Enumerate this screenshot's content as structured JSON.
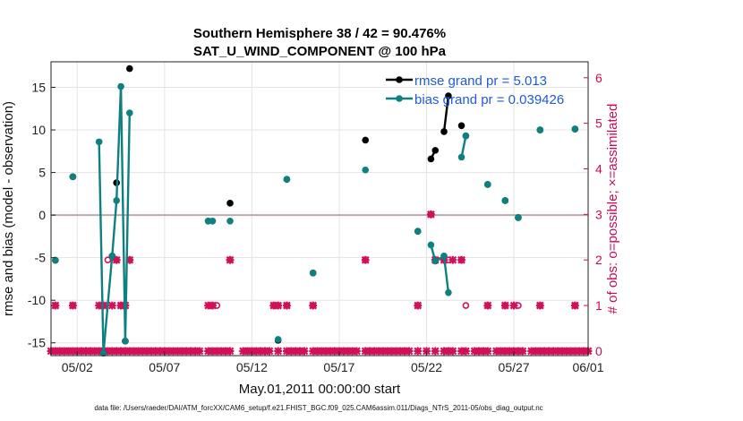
{
  "chart_data": {
    "type": "line",
    "title_line1": "Southern Hemisphere 38 / 42 = 90.476%",
    "title_line2": "SAT_U_WIND_COMPONENT @ 100 hPa",
    "xlabel": "May.01,2011 00:00:00 start",
    "ylabel_left": "rmse and bias (model - observation)",
    "ylabel_right": "# of obs: o=possible; ×=assimilated",
    "xlim": [
      0.5,
      31.25
    ],
    "ylim_left": [
      -16.5,
      18
    ],
    "ylim_right": [
      -0.1,
      6.35
    ],
    "x_ticks": [
      {
        "v": 2,
        "label": "05/02"
      },
      {
        "v": 7,
        "label": "05/07"
      },
      {
        "v": 12,
        "label": "05/12"
      },
      {
        "v": 17,
        "label": "05/17"
      },
      {
        "v": 22,
        "label": "05/22"
      },
      {
        "v": 27,
        "label": "05/27"
      },
      {
        "v": 32,
        "label": "06/01"
      }
    ],
    "y_ticks_left": [
      {
        "v": 15,
        "label": "15"
      },
      {
        "v": 10,
        "label": "10"
      },
      {
        "v": 5,
        "label": "5"
      },
      {
        "v": 0,
        "label": "0"
      },
      {
        "v": -5,
        "label": "-5"
      },
      {
        "v": -10,
        "label": "-10"
      },
      {
        "v": -15,
        "label": "-15"
      }
    ],
    "y_ticks_right": [
      {
        "v": 0,
        "label": "0"
      },
      {
        "v": 1,
        "label": "1"
      },
      {
        "v": 2,
        "label": "2"
      },
      {
        "v": 3,
        "label": "3"
      },
      {
        "v": 4,
        "label": "4"
      },
      {
        "v": 5,
        "label": "5"
      },
      {
        "v": 6,
        "label": "6"
      }
    ],
    "zero_line": 0,
    "series": [
      {
        "name": "rmse",
        "legend": "rmse grand pr = 5.013",
        "color": "#000000",
        "points": [
          [
            0.75,
            -5.3
          ],
          [
            1.75,
            4.5
          ],
          [
            3.5,
            -16.2
          ],
          [
            4.0,
            -4.8
          ],
          [
            4.25,
            3.8
          ],
          [
            4.75,
            -14.8
          ],
          [
            5.0,
            17.2
          ],
          [
            9.5,
            -0.7
          ],
          [
            10.75,
            1.4
          ],
          [
            13.5,
            -14.7
          ],
          [
            14.0,
            4.2
          ],
          [
            15.5,
            -6.8
          ],
          [
            18.5,
            8.8
          ],
          [
            21.5,
            -1.9
          ],
          [
            22.25,
            6.6
          ],
          [
            22.5,
            7.6
          ],
          [
            23.0,
            9.8
          ],
          [
            23.25,
            14.0
          ],
          [
            24.0,
            10.5
          ],
          [
            24.25,
            9.3
          ],
          [
            25.5,
            3.6
          ],
          [
            26.5,
            1.7
          ],
          [
            27.25,
            -0.3
          ],
          [
            28.5,
            10.0
          ],
          [
            30.5,
            10.1
          ]
        ],
        "segments": [
          [
            22.25,
            22.5
          ],
          [
            23.0,
            23.25
          ]
        ]
      },
      {
        "name": "bias",
        "legend": "bias grand pr = 0.039426",
        "color": "#0e8080",
        "points": [
          [
            0.75,
            -5.3
          ],
          [
            1.75,
            4.5
          ],
          [
            3.25,
            8.6
          ],
          [
            3.5,
            -16.2
          ],
          [
            4.0,
            -4.8
          ],
          [
            4.25,
            1.7
          ],
          [
            4.5,
            15.1
          ],
          [
            4.75,
            -14.8
          ],
          [
            5.0,
            12.0
          ],
          [
            9.5,
            -0.7
          ],
          [
            9.75,
            -0.7
          ],
          [
            10.75,
            -0.7
          ],
          [
            13.5,
            -14.6
          ],
          [
            14.0,
            4.2
          ],
          [
            15.5,
            -6.8
          ],
          [
            18.5,
            5.3
          ],
          [
            21.5,
            -1.9
          ],
          [
            22.25,
            -3.5
          ],
          [
            22.5,
            -5.4
          ],
          [
            23.0,
            -4.8
          ],
          [
            23.25,
            -9.1
          ],
          [
            24.0,
            6.8
          ],
          [
            24.25,
            9.3
          ],
          [
            25.5,
            3.6
          ],
          [
            26.5,
            1.7
          ],
          [
            27.25,
            -0.3
          ],
          [
            28.5,
            10.0
          ],
          [
            30.5,
            10.1
          ]
        ],
        "segments": [
          [
            3.25,
            3.5
          ],
          [
            3.5,
            4.0
          ],
          [
            4.0,
            4.25
          ],
          [
            4.25,
            4.5
          ],
          [
            4.5,
            4.75
          ],
          [
            4.75,
            5.0
          ],
          [
            9.5,
            9.75
          ],
          [
            22.25,
            22.5
          ],
          [
            22.5,
            23.0
          ],
          [
            23.0,
            23.25
          ],
          [
            24.0,
            24.25
          ]
        ]
      }
    ],
    "obs_possible": [
      [
        0.75,
        1
      ],
      [
        1.75,
        1
      ],
      [
        3.5,
        1
      ],
      [
        3.75,
        2
      ],
      [
        4.25,
        2
      ],
      [
        4.5,
        1
      ],
      [
        5.0,
        2
      ],
      [
        9.75,
        1
      ],
      [
        10.0,
        1
      ],
      [
        10.75,
        2
      ],
      [
        13.25,
        1
      ],
      [
        13.5,
        1
      ],
      [
        14.0,
        1
      ],
      [
        15.5,
        1
      ],
      [
        18.5,
        2
      ],
      [
        21.5,
        1
      ],
      [
        22.25,
        3
      ],
      [
        22.5,
        2
      ],
      [
        23.0,
        2
      ],
      [
        23.25,
        2
      ],
      [
        24.0,
        2
      ],
      [
        24.25,
        1
      ],
      [
        25.5,
        1
      ],
      [
        26.5,
        1
      ],
      [
        27.25,
        1
      ],
      [
        28.5,
        1
      ],
      [
        30.5,
        1
      ]
    ],
    "obs_assimilated": [
      [
        0.75,
        1
      ],
      [
        1.75,
        1
      ],
      [
        3.25,
        1
      ],
      [
        3.5,
        1
      ],
      [
        4.0,
        1
      ],
      [
        4.25,
        2
      ],
      [
        4.5,
        1
      ],
      [
        4.75,
        1
      ],
      [
        5.0,
        2
      ],
      [
        9.5,
        1
      ],
      [
        9.75,
        1
      ],
      [
        10.75,
        2
      ],
      [
        13.25,
        1
      ],
      [
        13.5,
        1
      ],
      [
        14.0,
        1
      ],
      [
        15.5,
        1
      ],
      [
        18.5,
        2
      ],
      [
        21.5,
        1
      ],
      [
        22.25,
        3
      ],
      [
        22.5,
        2
      ],
      [
        23.0,
        2
      ],
      [
        23.5,
        2
      ],
      [
        24.0,
        2
      ],
      [
        25.5,
        1
      ],
      [
        26.5,
        1
      ],
      [
        27.0,
        1
      ],
      [
        28.5,
        1
      ],
      [
        30.5,
        1
      ]
    ],
    "obs_zero": [
      0.5,
      0.75,
      1.0,
      1.25,
      1.5,
      1.75,
      2.0,
      2.25,
      2.5,
      2.75,
      3.0,
      3.25,
      3.5,
      3.75,
      4.0,
      4.25,
      4.5,
      4.75,
      5.0,
      5.25,
      5.5,
      5.75,
      6.0,
      6.25,
      6.5,
      6.75,
      7.0,
      7.25,
      7.5,
      7.75,
      8.0,
      8.25,
      8.5,
      8.75,
      9.0,
      9.5,
      9.75,
      10.0,
      10.25,
      10.5,
      10.75,
      11.5,
      11.75,
      12.0,
      12.25,
      12.5,
      12.75,
      13.0,
      13.5,
      14.0,
      14.25,
      14.5,
      14.75,
      15.0,
      15.5,
      15.75,
      16.0,
      16.25,
      16.5,
      16.75,
      17.0,
      17.25,
      17.5,
      17.75,
      18.0,
      18.5,
      18.75,
      19.0,
      19.25,
      19.5,
      19.75,
      20.0,
      20.25,
      20.5,
      20.75,
      21.0,
      21.5,
      22.0,
      22.5,
      23.0,
      23.25,
      23.5,
      24.0,
      24.25,
      24.75,
      25.0,
      25.25,
      25.5,
      26.0,
      26.25,
      26.5,
      26.75,
      27.0,
      27.25,
      27.5,
      28.0,
      28.25,
      28.5,
      28.75,
      29.0,
      29.25,
      29.5,
      29.75,
      30.0,
      30.25,
      30.5,
      30.75,
      31.0,
      31.25
    ],
    "footnote": "data file: /Users/raeder/DAI/ATM_forcXX/CAM6_setup/f.e21.FHIST_BGC.f09_025.CAM6assim.011/Diags_NTrS_2011-05/obs_diag_output.nc"
  }
}
